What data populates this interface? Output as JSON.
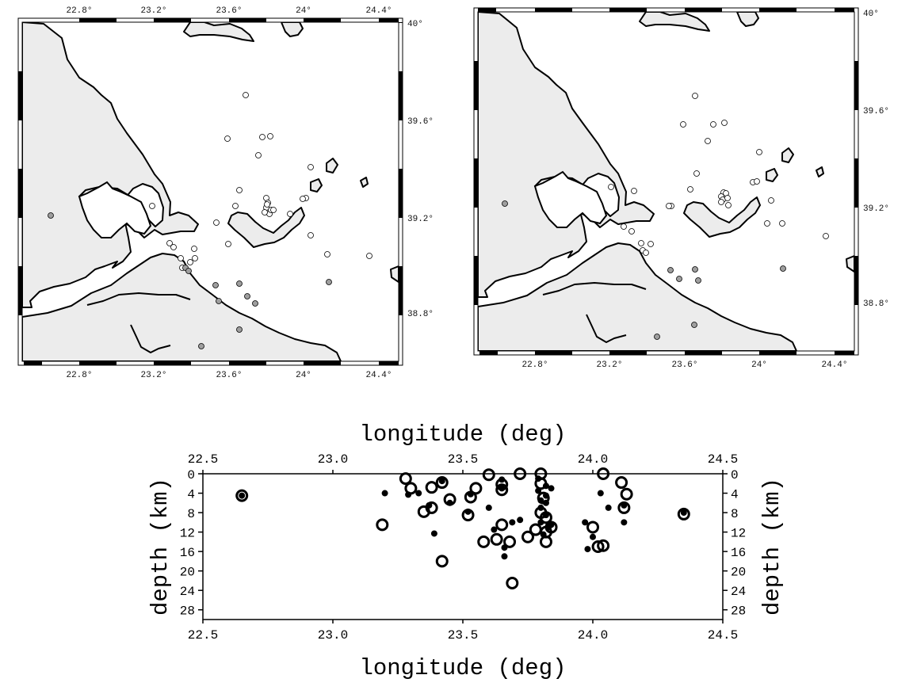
{
  "left_map": {
    "top_ticks": [
      "22.8°",
      "23.2°",
      "23.6°",
      "24°",
      "24.4°"
    ],
    "bottom_ticks": [
      "22.8°",
      "23.2°",
      "23.6°",
      "24°",
      "24.4°"
    ],
    "right_ticks": [
      "40°",
      "39.6°",
      "39.2°",
      "38.8°"
    ]
  },
  "right_map": {
    "bottom_ticks": [
      "22.8°",
      "23.2°",
      "23.6°",
      "24°",
      "24.4°"
    ],
    "right_ticks": [
      "40°",
      "39.6°",
      "39.2°",
      "38.8°"
    ]
  },
  "colors": {
    "land": "#ececec",
    "sea": "#ffffff",
    "open_event": "#ffffff",
    "grey_event": "#9e9e9e",
    "coastline": "#000000"
  },
  "chart_data": {
    "type": "scatter",
    "title": "",
    "xlabel": "longitude (deg)",
    "ylabel": "depth (km)",
    "xlim": [
      22.5,
      24.5
    ],
    "ylim": [
      0,
      30
    ],
    "y_inverted": true,
    "x_ticks": [
      "22.5",
      "23.0",
      "23.5",
      "24.0",
      "24.5"
    ],
    "y_ticks": [
      "0",
      "4",
      "8",
      "12",
      "16",
      "20",
      "24",
      "28"
    ],
    "series": [
      {
        "marker": "large-ring",
        "points": [
          [
            22.65,
            4.5
          ],
          [
            23.19,
            10.5
          ],
          [
            23.28,
            1.0
          ],
          [
            23.3,
            3.0
          ],
          [
            23.35,
            7.8
          ],
          [
            23.38,
            7.0
          ],
          [
            23.38,
            2.8
          ],
          [
            23.42,
            1.8
          ],
          [
            23.42,
            18.0
          ],
          [
            23.45,
            5.3
          ],
          [
            23.52,
            8.5
          ],
          [
            23.53,
            4.8
          ],
          [
            23.55,
            3.0
          ],
          [
            23.58,
            14.0
          ],
          [
            23.6,
            0.2
          ],
          [
            23.63,
            13.5
          ],
          [
            23.65,
            10.5
          ],
          [
            23.65,
            2.2
          ],
          [
            23.65,
            3.3
          ],
          [
            23.68,
            14.0
          ],
          [
            23.69,
            22.5
          ],
          [
            23.72,
            0.0
          ],
          [
            23.75,
            13.0
          ],
          [
            23.78,
            11.5
          ],
          [
            23.8,
            0.0
          ],
          [
            23.8,
            2.0
          ],
          [
            23.8,
            8.0
          ],
          [
            23.81,
            5.0
          ],
          [
            23.82,
            9.0
          ],
          [
            23.82,
            12.0
          ],
          [
            23.82,
            14.0
          ],
          [
            23.84,
            11.0
          ],
          [
            24.0,
            11.0
          ],
          [
            24.02,
            15.0
          ],
          [
            24.04,
            14.8
          ],
          [
            24.04,
            0.0
          ],
          [
            24.11,
            1.8
          ],
          [
            24.12,
            7.0
          ],
          [
            24.13,
            4.2
          ],
          [
            24.35,
            8.3
          ]
        ]
      },
      {
        "marker": "small-dot",
        "points": [
          [
            22.65,
            4.5
          ],
          [
            23.2,
            4.0
          ],
          [
            23.29,
            4.3
          ],
          [
            23.33,
            4.0
          ],
          [
            23.37,
            6.5
          ],
          [
            23.39,
            12.3
          ],
          [
            23.42,
            1.5
          ],
          [
            23.45,
            6.0
          ],
          [
            23.52,
            7.8
          ],
          [
            23.53,
            4.2
          ],
          [
            23.6,
            7.0
          ],
          [
            23.62,
            11.5
          ],
          [
            23.65,
            1.2
          ],
          [
            23.65,
            3.0
          ],
          [
            23.66,
            15.2
          ],
          [
            23.66,
            17.0
          ],
          [
            23.69,
            10.0
          ],
          [
            23.72,
            9.5
          ],
          [
            23.79,
            1.0
          ],
          [
            23.79,
            3.5
          ],
          [
            23.8,
            5.5
          ],
          [
            23.8,
            7.0
          ],
          [
            23.8,
            10.0
          ],
          [
            23.81,
            12.5
          ],
          [
            23.82,
            2.5
          ],
          [
            23.82,
            4.5
          ],
          [
            23.82,
            6.0
          ],
          [
            23.82,
            8.5
          ],
          [
            23.83,
            11.0
          ],
          [
            23.84,
            3.0
          ],
          [
            23.84,
            10.5
          ],
          [
            23.97,
            10.0
          ],
          [
            23.98,
            15.5
          ],
          [
            24.0,
            13.0
          ],
          [
            24.03,
            4.0
          ],
          [
            24.06,
            7.0
          ],
          [
            24.12,
            10.0
          ],
          [
            24.12,
            6.5
          ],
          [
            24.35,
            8.0
          ]
        ]
      }
    ]
  }
}
